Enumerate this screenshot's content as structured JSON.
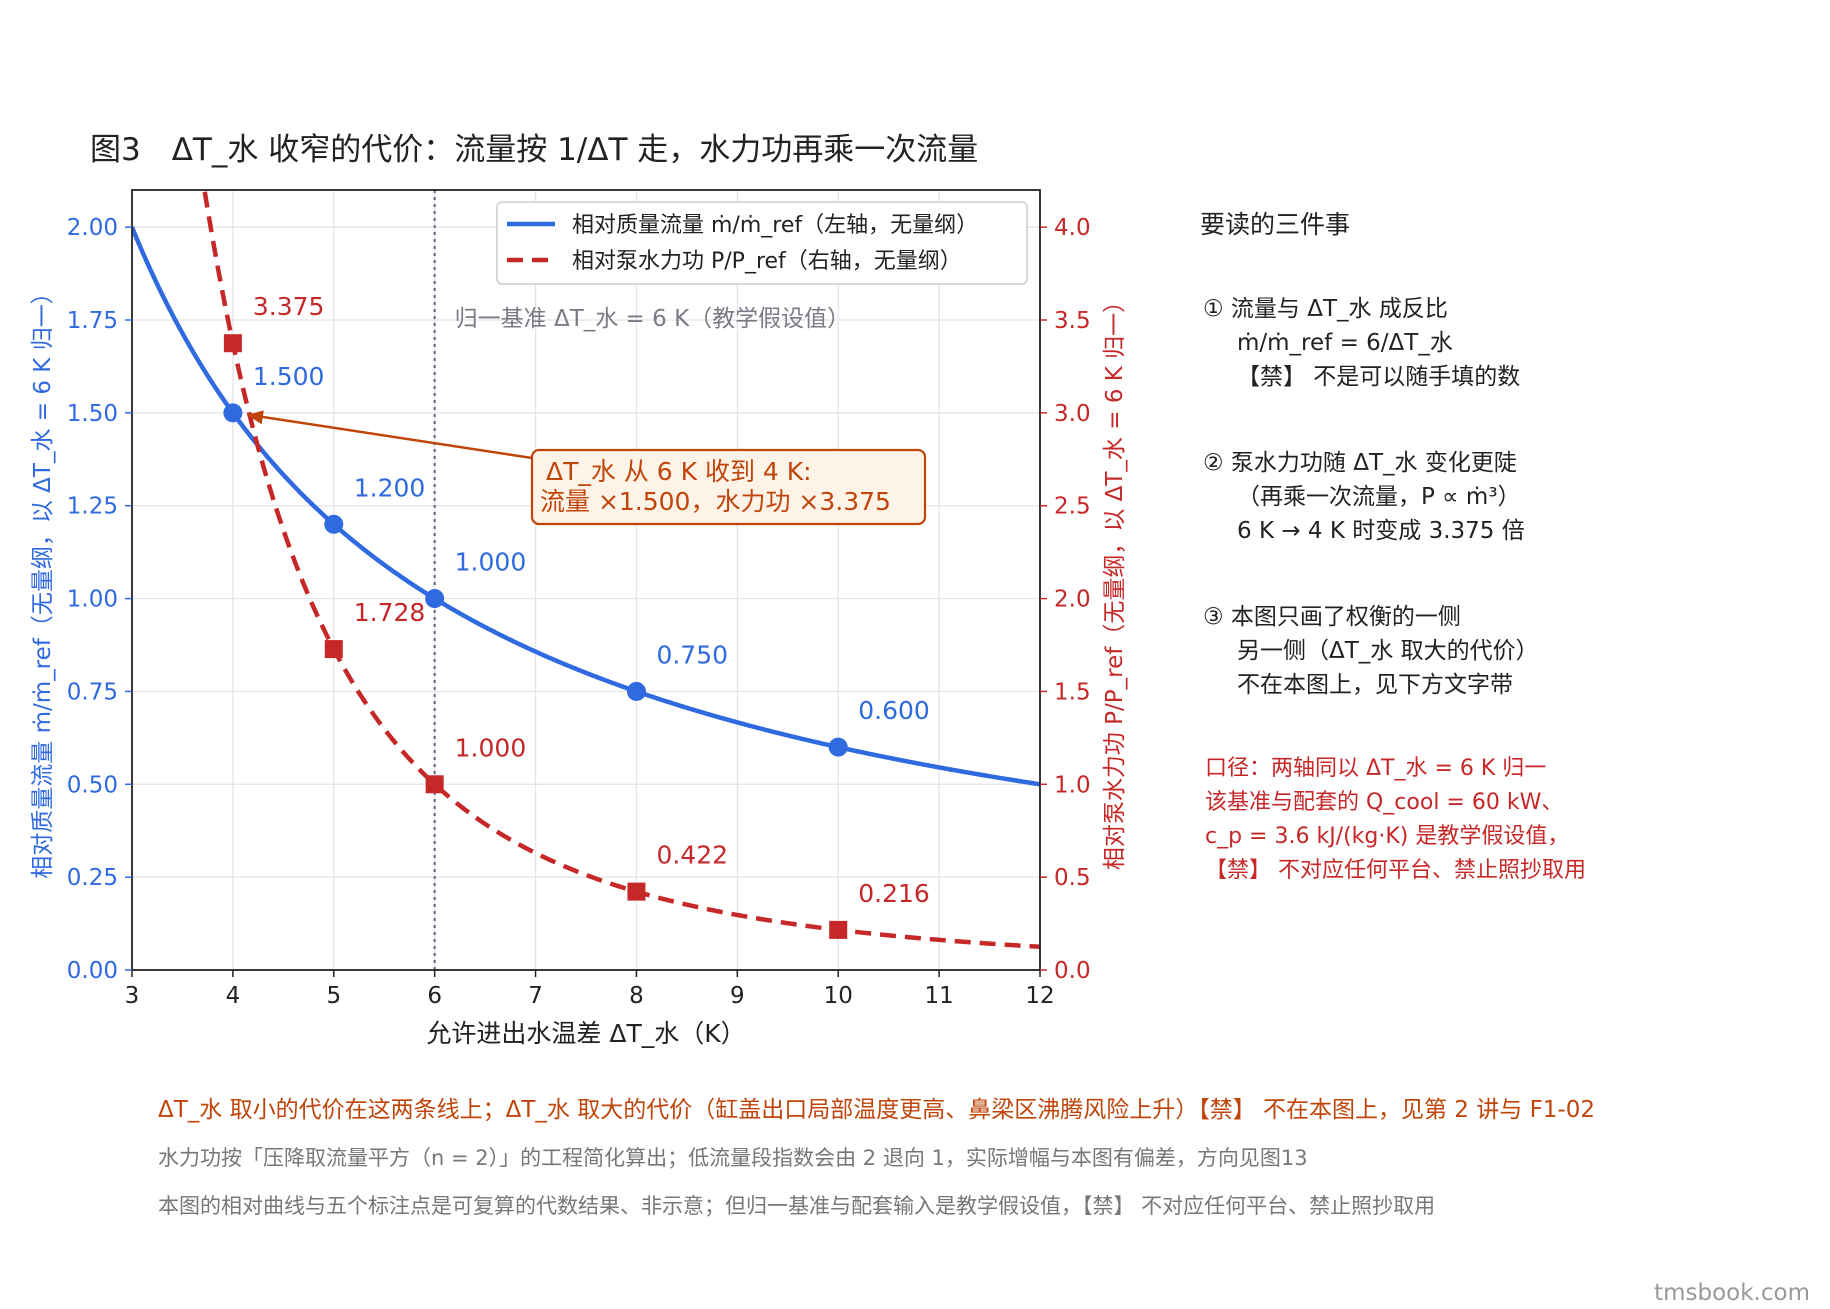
{
  "chart_data": {
    "type": "line",
    "title": "图3　ΔT_水 收窄的代价：流量按 1/ΔT 走，水力功再乘一次流量",
    "xlabel": "允许进出水温差 ΔT_水（K）",
    "ylabel_left": "相对质量流量 ṁ/ṁ_ref（无量纲，以 ΔT_水 = 6 K 归一）",
    "ylabel_right": "相对泵水力功 P/P_ref（无量纲，以 ΔT_水 = 6 K 归一）",
    "xlim": [
      3,
      12
    ],
    "ylim_left": [
      0,
      2.1
    ],
    "ylim_right": [
      0,
      4.2
    ],
    "xticks": [
      "3",
      "4",
      "5",
      "6",
      "7",
      "8",
      "9",
      "10",
      "11",
      "12"
    ],
    "yticks_left": [
      "0.00",
      "0.25",
      "0.50",
      "0.75",
      "1.00",
      "1.25",
      "1.50",
      "1.75",
      "2.00"
    ],
    "yticks_right": [
      "0.0",
      "0.5",
      "1.0",
      "1.5",
      "2.0",
      "2.5",
      "3.0",
      "3.5",
      "4.0"
    ],
    "grid": true,
    "legend_position": "top-right",
    "series": [
      {
        "name": "相对质量流量 ṁ/ṁ_ref（左轴，无量纲）",
        "axis": "left",
        "color": "#2f6ae0",
        "style": "solid",
        "formula": "6/x",
        "markers": [
          {
            "x": 4,
            "y": 1.5,
            "label": "1.500"
          },
          {
            "x": 5,
            "y": 1.2,
            "label": "1.200"
          },
          {
            "x": 6,
            "y": 1.0,
            "label": "1.000"
          },
          {
            "x": 8,
            "y": 0.75,
            "label": "0.750"
          },
          {
            "x": 10,
            "y": 0.6,
            "label": "0.600"
          }
        ]
      },
      {
        "name": "相对泵水力功 P/P_ref（右轴，无量纲）",
        "axis": "right",
        "color": "#c62828",
        "style": "dashed",
        "formula": "(6/x)^3",
        "markers": [
          {
            "x": 4,
            "y": 3.375,
            "label": "3.375"
          },
          {
            "x": 5,
            "y": 1.728,
            "label": "1.728"
          },
          {
            "x": 6,
            "y": 1.0,
            "label": "1.000"
          },
          {
            "x": 8,
            "y": 0.422,
            "label": "0.422"
          },
          {
            "x": 10,
            "y": 0.216,
            "label": "0.216"
          }
        ]
      }
    ],
    "reference_line": {
      "x": 6,
      "label": "归一基准 ΔT_水 = 6 K（教学假设值）"
    },
    "annotation": {
      "lines": [
        "ΔT_水 从 6 K 收到 4 K:",
        "流量 ×1.500，水力功 ×3.375"
      ],
      "arrow_target": {
        "x": 4,
        "y": 1.5
      }
    }
  },
  "side": {
    "title": "要读的三件事",
    "points": [
      {
        "lines": [
          "① 流量与 ΔT_水 成反比",
          "ṁ/ṁ_ref = 6/ΔT_水",
          "【禁】 不是可以随手填的数"
        ]
      },
      {
        "lines": [
          "② 泵水力功随 ΔT_水 变化更陡",
          "（再乘一次流量，P ∝ ṁ³）",
          "6 K → 4 K 时变成 3.375 倍"
        ]
      },
      {
        "lines": [
          "③ 本图只画了权衡的一侧",
          "另一侧（ΔT_水 取大的代价）",
          "不在本图上，见下方文字带"
        ]
      }
    ],
    "note_lines": [
      "口径：两轴同以 ΔT_水 = 6 K 归一",
      "该基准与配套的 Q_cool = 60 kW、",
      "c_p = 3.6 kJ/(kg·K) 是教学假设值，",
      "【禁】 不对应任何平台、禁止照抄取用"
    ]
  },
  "bottom": {
    "line1": "ΔT_水 取小的代价在这两条线上；ΔT_水 取大的代价（缸盖出口局部温度更高、鼻梁区沸腾风险上升）【禁】 不在本图上，见第 2 讲与 F1-02",
    "line2": "水力功按「压降取流量平方（n = 2）」的工程简化算出；低流量段指数会由 2 退向 1，实际增幅与本图有偏差，方向见图13",
    "line3": "本图的相对曲线与五个标注点是可复算的代数结果、非示意；但归一基准与配套输入是教学假设值，【禁】 不对应任何平台、禁止照抄取用"
  },
  "watermark": "tmsbook.com"
}
